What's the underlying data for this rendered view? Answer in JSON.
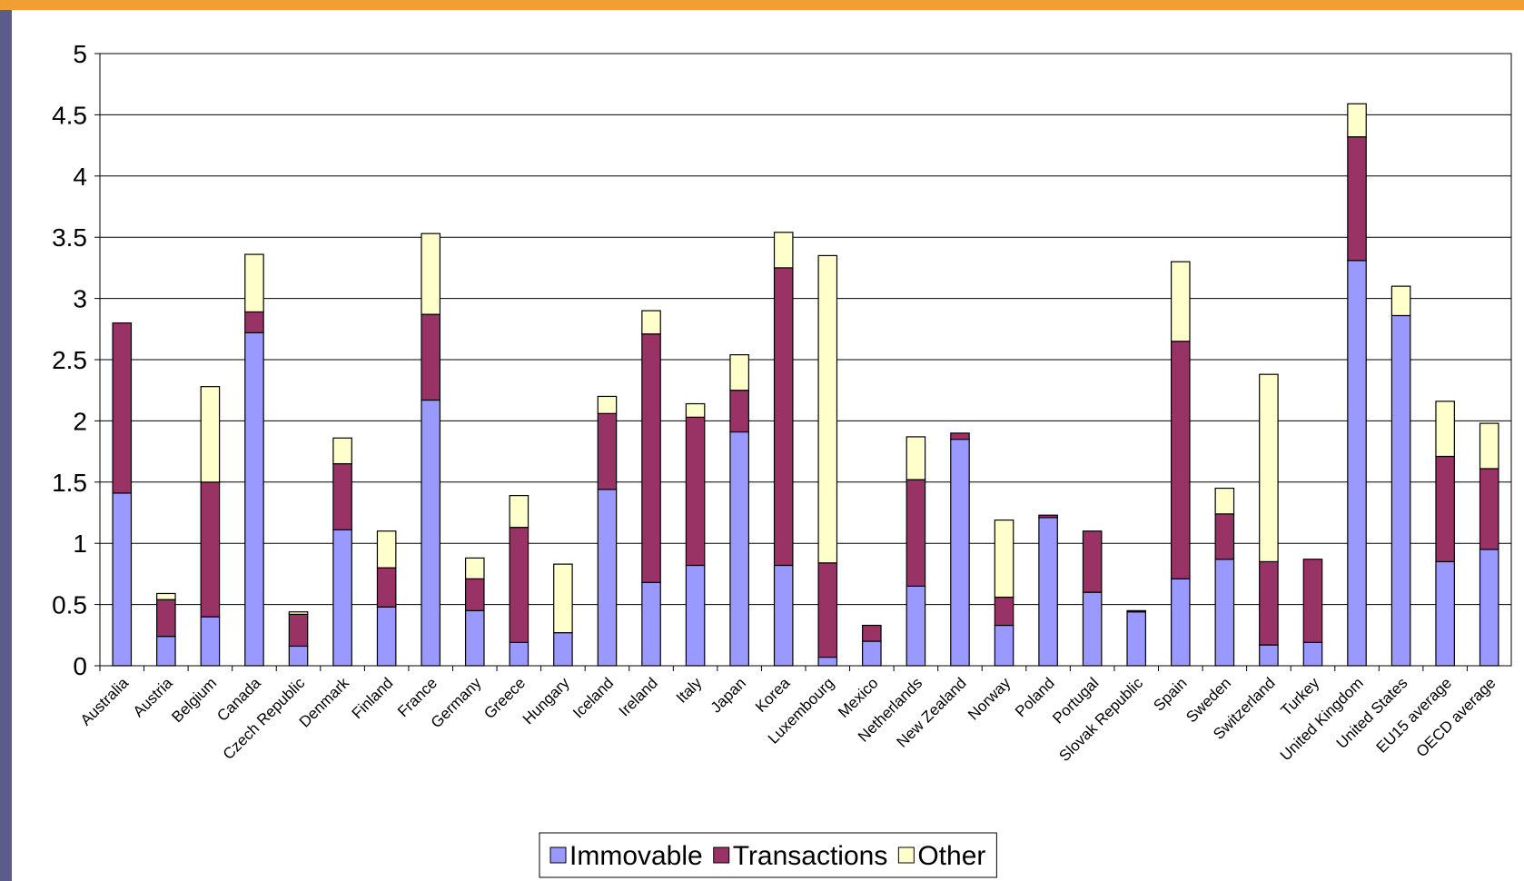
{
  "chart_data": {
    "type": "stacked_bar",
    "categories": [
      "Australia",
      "Austria",
      "Belgium",
      "Canada",
      "Czech Republic",
      "Denmark",
      "Finland",
      "France",
      "Germany",
      "Greece",
      "Hungary",
      "Iceland",
      "Ireland",
      "Italy",
      "Japan",
      "Korea",
      "Luxembourg",
      "Mexico",
      "Netherlands",
      "New Zealand",
      "Norway",
      "Poland",
      "Portugal",
      "Slovak Republic",
      "Spain",
      "Sweden",
      "Switzerland",
      "Turkey",
      "United Kingdom",
      "United States",
      "EU15 average",
      "OECD average"
    ],
    "series": [
      {
        "name": "Immovable",
        "color": "#9999ff",
        "values": [
          1.41,
          0.24,
          0.4,
          2.72,
          0.16,
          1.11,
          0.48,
          2.17,
          0.45,
          0.19,
          0.27,
          1.44,
          0.68,
          0.82,
          1.91,
          0.82,
          0.07,
          0.2,
          0.65,
          1.85,
          0.33,
          1.21,
          0.6,
          0.44,
          0.71,
          0.87,
          0.17,
          0.19,
          3.31,
          2.86,
          0.85,
          0.95
        ]
      },
      {
        "name": "Transactions",
        "color": "#993366",
        "values": [
          1.39,
          0.3,
          1.1,
          0.17,
          0.26,
          0.54,
          0.32,
          0.7,
          0.26,
          0.94,
          0,
          0.62,
          2.03,
          1.21,
          0.34,
          2.43,
          0.77,
          0.13,
          0.87,
          0.05,
          0.23,
          0.02,
          0.5,
          0.01,
          1.94,
          0.37,
          0.68,
          0.68,
          1.01,
          0,
          0.86,
          0.66
        ]
      },
      {
        "name": "Other",
        "color": "#ffffcc",
        "values": [
          0,
          0.05,
          0.78,
          0.47,
          0.02,
          0.21,
          0.3,
          0.66,
          0.17,
          0.26,
          0.56,
          0.14,
          0.19,
          0.11,
          0.29,
          0.29,
          2.51,
          0,
          0.35,
          0,
          0.63,
          0,
          0,
          0,
          0.65,
          0.21,
          1.53,
          0,
          0.27,
          0.24,
          0.45,
          0.37
        ]
      }
    ],
    "ylim": [
      0,
      5
    ],
    "yticks": [
      0,
      0.5,
      1,
      1.5,
      2,
      2.5,
      3,
      3.5,
      4,
      4.5,
      5
    ],
    "grid": true,
    "legend": "bottom"
  }
}
